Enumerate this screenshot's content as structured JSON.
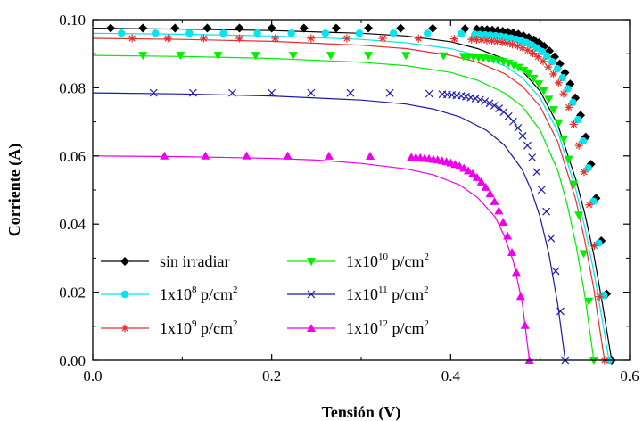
{
  "chart_data": {
    "type": "line",
    "xlabel": "Tensión (V)",
    "ylabel": "Corriente (A)",
    "xlim": [
      0.0,
      0.6
    ],
    "ylim": [
      0.0,
      0.1
    ],
    "x_ticks": [
      "0.0",
      "0.2",
      "0.4",
      "0.6"
    ],
    "y_ticks": [
      "0.00",
      "0.02",
      "0.04",
      "0.06",
      "0.08",
      "0.10"
    ],
    "grid": false,
    "legend_placement": "bottom-left",
    "series": [
      {
        "name": "sin irradiar",
        "legend_base": "sin irradiar",
        "legend_exp": "",
        "legend_unit": "",
        "color": "#000000",
        "marker": "diamond",
        "isc": 0.0975,
        "voc": 0.58,
        "x": [
          0.0,
          0.1,
          0.2,
          0.3,
          0.35,
          0.4,
          0.43,
          0.46,
          0.48,
          0.5,
          0.52,
          0.54,
          0.55,
          0.56,
          0.57,
          0.575,
          0.58
        ],
        "y": [
          0.0975,
          0.0972,
          0.0968,
          0.096,
          0.0952,
          0.0935,
          0.0915,
          0.0885,
          0.085,
          0.079,
          0.069,
          0.053,
          0.043,
          0.031,
          0.016,
          0.008,
          0.0
        ]
      },
      {
        "name": "1x10^8 p/cm^2",
        "legend_base": "1x10",
        "legend_exp": "8",
        "legend_unit": " p/cm",
        "color": "#00e5ee",
        "marker": "circle",
        "isc": 0.096,
        "voc": 0.577,
        "x": [
          0.0,
          0.1,
          0.2,
          0.3,
          0.35,
          0.4,
          0.43,
          0.46,
          0.48,
          0.5,
          0.52,
          0.54,
          0.55,
          0.56,
          0.57,
          0.577
        ],
        "y": [
          0.096,
          0.0957,
          0.0952,
          0.0942,
          0.0932,
          0.0915,
          0.0895,
          0.0865,
          0.083,
          0.077,
          0.067,
          0.05,
          0.039,
          0.026,
          0.011,
          0.0
        ]
      },
      {
        "name": "1x10^9 p/cm^2",
        "legend_base": "1x10",
        "legend_exp": "9",
        "legend_unit": " p/cm",
        "color": "#e03030",
        "marker": "asterisk",
        "isc": 0.0945,
        "voc": 0.572,
        "x": [
          0.0,
          0.1,
          0.2,
          0.3,
          0.35,
          0.4,
          0.43,
          0.46,
          0.48,
          0.5,
          0.52,
          0.54,
          0.55,
          0.56,
          0.565,
          0.572
        ],
        "y": [
          0.0945,
          0.0942,
          0.0936,
          0.0925,
          0.0915,
          0.0895,
          0.0875,
          0.0842,
          0.0805,
          0.0745,
          0.064,
          0.047,
          0.035,
          0.021,
          0.012,
          0.0
        ]
      },
      {
        "name": "1x10^10 p/cm^2",
        "legend_base": "1x10",
        "legend_exp": "10",
        "legend_unit": " p/cm",
        "color": "#00ee00",
        "marker": "triangle-down",
        "isc": 0.0895,
        "voc": 0.56,
        "x": [
          0.0,
          0.1,
          0.2,
          0.3,
          0.35,
          0.4,
          0.43,
          0.46,
          0.48,
          0.5,
          0.52,
          0.53,
          0.54,
          0.55,
          0.56
        ],
        "y": [
          0.0895,
          0.0892,
          0.0886,
          0.0875,
          0.0865,
          0.0845,
          0.0822,
          0.0785,
          0.0745,
          0.0675,
          0.0555,
          0.046,
          0.034,
          0.019,
          0.0
        ]
      },
      {
        "name": "1x10^11 p/cm^2",
        "legend_base": "1x10",
        "legend_exp": "11",
        "legend_unit": " p/cm",
        "color": "#1a1aa6",
        "marker": "cross",
        "isc": 0.0785,
        "voc": 0.528,
        "x": [
          0.0,
          0.1,
          0.2,
          0.3,
          0.35,
          0.38,
          0.41,
          0.44,
          0.46,
          0.48,
          0.49,
          0.5,
          0.51,
          0.52,
          0.528
        ],
        "y": [
          0.0785,
          0.0782,
          0.0776,
          0.0764,
          0.0752,
          0.0738,
          0.0715,
          0.0675,
          0.0632,
          0.056,
          0.05,
          0.042,
          0.031,
          0.016,
          0.0
        ]
      },
      {
        "name": "1x10^12 p/cm^2",
        "legend_base": "1x10",
        "legend_exp": "12",
        "legend_unit": " p/cm",
        "color": "#ee00ee",
        "marker": "triangle-up",
        "isc": 0.06,
        "voc": 0.488,
        "x": [
          0.0,
          0.1,
          0.2,
          0.25,
          0.3,
          0.35,
          0.38,
          0.41,
          0.43,
          0.45,
          0.46,
          0.47,
          0.48,
          0.488
        ],
        "y": [
          0.06,
          0.0598,
          0.0593,
          0.0588,
          0.0578,
          0.0562,
          0.0545,
          0.0515,
          0.0478,
          0.042,
          0.0365,
          0.029,
          0.017,
          0.0
        ]
      }
    ]
  }
}
